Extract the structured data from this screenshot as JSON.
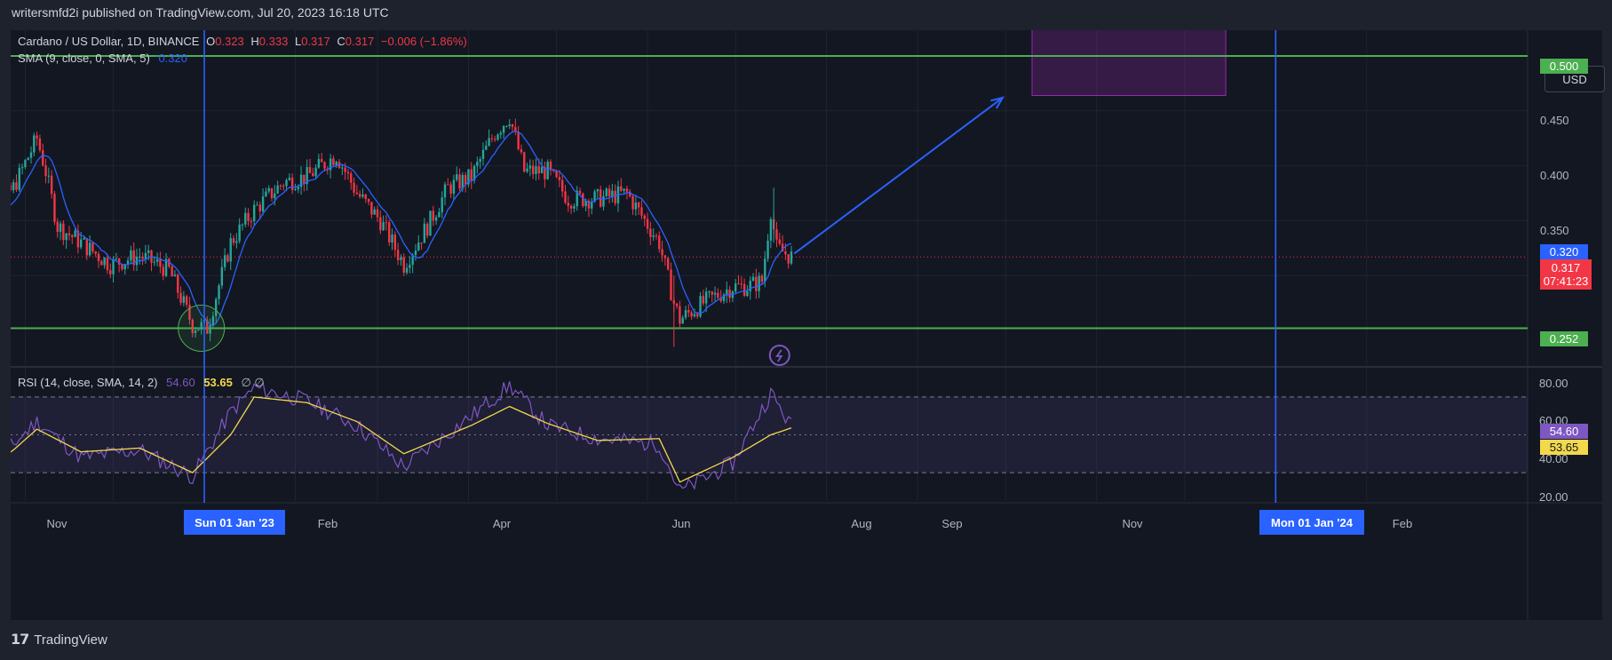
{
  "header": {
    "publisher_line": "writersmfd2i published on TradingView.com, Jul 20, 2023 16:18 UTC"
  },
  "legend": {
    "symbol": "Cardano / US Dollar, 1D, BINANCE",
    "o_label": "O",
    "o_value": "0.323",
    "h_label": "H",
    "h_value": "0.333",
    "l_label": "L",
    "l_value": "0.317",
    "c_label": "C",
    "c_value": "0.317",
    "change": "−0.006 (−1.86%)",
    "sma_label": "SMA (9, close, 0, SMA, 5)",
    "sma_value": "0.320",
    "rsi_label": "RSI (14, close, SMA, 14, 2)",
    "rsi_value": "54.60",
    "rsi_ma_value": "53.65",
    "rsi_extra": "∅  ∅"
  },
  "currency_button": "USD",
  "price_axis": [
    "0.450",
    "0.400",
    "0.350"
  ],
  "rsi_axis": [
    "80.00",
    "60.00",
    "40.00",
    "20.00"
  ],
  "price_tags": {
    "resistance": "0.500",
    "sma": "0.320",
    "last_price": "0.317",
    "countdown": "07:41:23",
    "support": "0.252",
    "rsi": "54.60",
    "rsi_ma": "53.65"
  },
  "time_axis": {
    "nov": "Nov",
    "feb": "Feb",
    "apr": "Apr",
    "jun": "Jun",
    "aug": "Aug",
    "sep": "Sep",
    "nov2": "Nov",
    "feb2": "Feb"
  },
  "time_badges": {
    "jan23": "Sun 01 Jan '23",
    "jan24": "Mon 01 Jan '24"
  },
  "footer": {
    "logo": "𝟭𝟳",
    "brand": "TradingView"
  },
  "colors": {
    "bull": "#26a69a",
    "bear": "#f23645",
    "sma": "#2962ff",
    "level": "#4caf50",
    "rsi": "#7e57c2",
    "rsi_ma": "#f2d84b",
    "target_box": "#9c27b0"
  },
  "icons": {
    "flash": "lightning-icon"
  },
  "chart_data": {
    "type": "candlestick",
    "title": "Cardano / US Dollar, 1D, BINANCE",
    "y_unit": "USD",
    "ylim": [
      0.235,
      0.525
    ],
    "grid": true,
    "horizontal_levels": [
      0.5,
      0.252
    ],
    "target_zone": {
      "x_start": "2023-10-10",
      "x_end": "2023-12-15",
      "y_low": 0.464,
      "y_high": 0.528
    },
    "projection_arrow": {
      "from": [
        "2023-07-21",
        0.32
      ],
      "to": [
        "2023-09-30",
        0.462
      ]
    },
    "vertical_markers": [
      "2023-01-01",
      "2024-01-01"
    ],
    "highlight_circle": {
      "x": "2022-12-31",
      "y": 0.252
    },
    "price_path": {
      "dates": [
        "2022-10-15",
        "2022-10-20",
        "2022-10-28",
        "2022-11-05",
        "2022-11-08",
        "2022-11-12",
        "2022-11-20",
        "2022-11-30",
        "2022-12-10",
        "2022-12-20",
        "2022-12-28",
        "2023-01-02",
        "2023-01-10",
        "2023-01-18",
        "2023-01-28",
        "2023-02-05",
        "2023-02-15",
        "2023-02-22",
        "2023-03-02",
        "2023-03-10",
        "2023-03-18",
        "2023-03-25",
        "2023-04-02",
        "2023-04-10",
        "2023-04-15",
        "2023-04-20",
        "2023-04-28",
        "2023-05-05",
        "2023-05-15",
        "2023-05-25",
        "2023-06-05",
        "2023-06-10",
        "2023-06-12",
        "2023-06-20",
        "2023-06-30",
        "2023-07-05",
        "2023-07-10",
        "2023-07-13",
        "2023-07-15",
        "2023-07-20"
      ],
      "close": [
        0.375,
        0.355,
        0.38,
        0.425,
        0.395,
        0.345,
        0.33,
        0.31,
        0.318,
        0.305,
        0.255,
        0.252,
        0.33,
        0.36,
        0.385,
        0.39,
        0.41,
        0.375,
        0.35,
        0.31,
        0.345,
        0.38,
        0.39,
        0.43,
        0.445,
        0.395,
        0.395,
        0.37,
        0.37,
        0.375,
        0.33,
        0.275,
        0.26,
        0.275,
        0.29,
        0.29,
        0.295,
        0.36,
        0.325,
        0.317
      ]
    },
    "sma": {
      "name": "SMA (9, close, 0, SMA, 5)",
      "last": 0.32
    },
    "rsi": {
      "name": "RSI (14, close, SMA, 14, 2)",
      "ylim": [
        15,
        85
      ],
      "bands": [
        70,
        30
      ],
      "midline": 50,
      "dates": [
        "2022-10-15",
        "2022-10-28",
        "2022-11-05",
        "2022-11-20",
        "2022-12-10",
        "2022-12-28",
        "2023-01-10",
        "2023-01-18",
        "2023-02-05",
        "2023-02-22",
        "2023-03-10",
        "2023-04-02",
        "2023-04-15",
        "2023-04-28",
        "2023-05-15",
        "2023-06-05",
        "2023-06-12",
        "2023-06-30",
        "2023-07-13",
        "2023-07-20"
      ],
      "values": [
        32,
        45,
        57,
        38,
        42,
        28,
        62,
        75,
        68,
        55,
        33,
        60,
        76,
        55,
        48,
        45,
        20,
        35,
        72,
        54.6
      ],
      "ma_values": [
        28,
        42,
        53,
        41,
        43,
        30,
        50,
        70,
        67,
        57,
        40,
        55,
        65,
        56,
        47,
        48,
        25,
        38,
        50,
        53.65
      ],
      "last": 54.6,
      "ma_last": 53.65
    }
  }
}
